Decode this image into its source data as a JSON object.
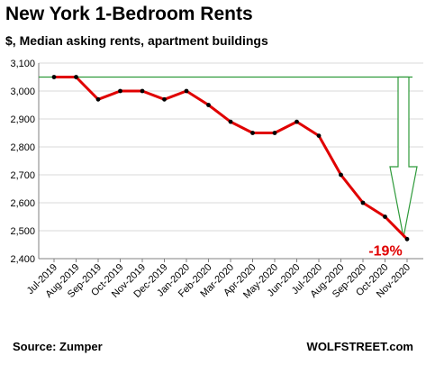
{
  "header": {
    "title": "New York 1-Bedroom Rents",
    "subtitle": "$, Median asking rents, apartment buildings"
  },
  "footer": {
    "source": "Source: Zumper",
    "brand": "WOLFSTREET.com"
  },
  "colors": {
    "series_line": "#e00000",
    "markers": "#000000",
    "reference": "#2e9a3a",
    "callout": "#e00000",
    "grid": "#d9d9d9"
  },
  "chart_data": {
    "type": "line",
    "title": "New York 1-Bedroom Rents",
    "subtitle": "$, Median asking rents, apartment buildings",
    "categories": [
      "Jul-2019",
      "Aug-2019",
      "Sep-2019",
      "Oct-2019",
      "Nov-2019",
      "Dec-2019",
      "Jan-2020",
      "Feb-2020",
      "Mar-2020",
      "Apr-2020",
      "May-2020",
      "Jun-2020",
      "Jul-2020",
      "Aug-2020",
      "Sep-2020",
      "Oct-2020",
      "Nov-2020"
    ],
    "series": [
      {
        "values": [
          3050,
          3050,
          2970,
          3000,
          3000,
          2970,
          3000,
          2950,
          2890,
          2850,
          2850,
          2890,
          2840,
          2700,
          2600,
          2550,
          2470
        ]
      }
    ],
    "y_ticks": [
      "2,400",
      "2,500",
      "2,600",
      "2,700",
      "2,800",
      "2,900",
      "3,000",
      "3,100"
    ],
    "ylim": [
      2400,
      3100
    ],
    "grid": "horizontal",
    "reference_line": 3050,
    "annotation": "-19%"
  }
}
